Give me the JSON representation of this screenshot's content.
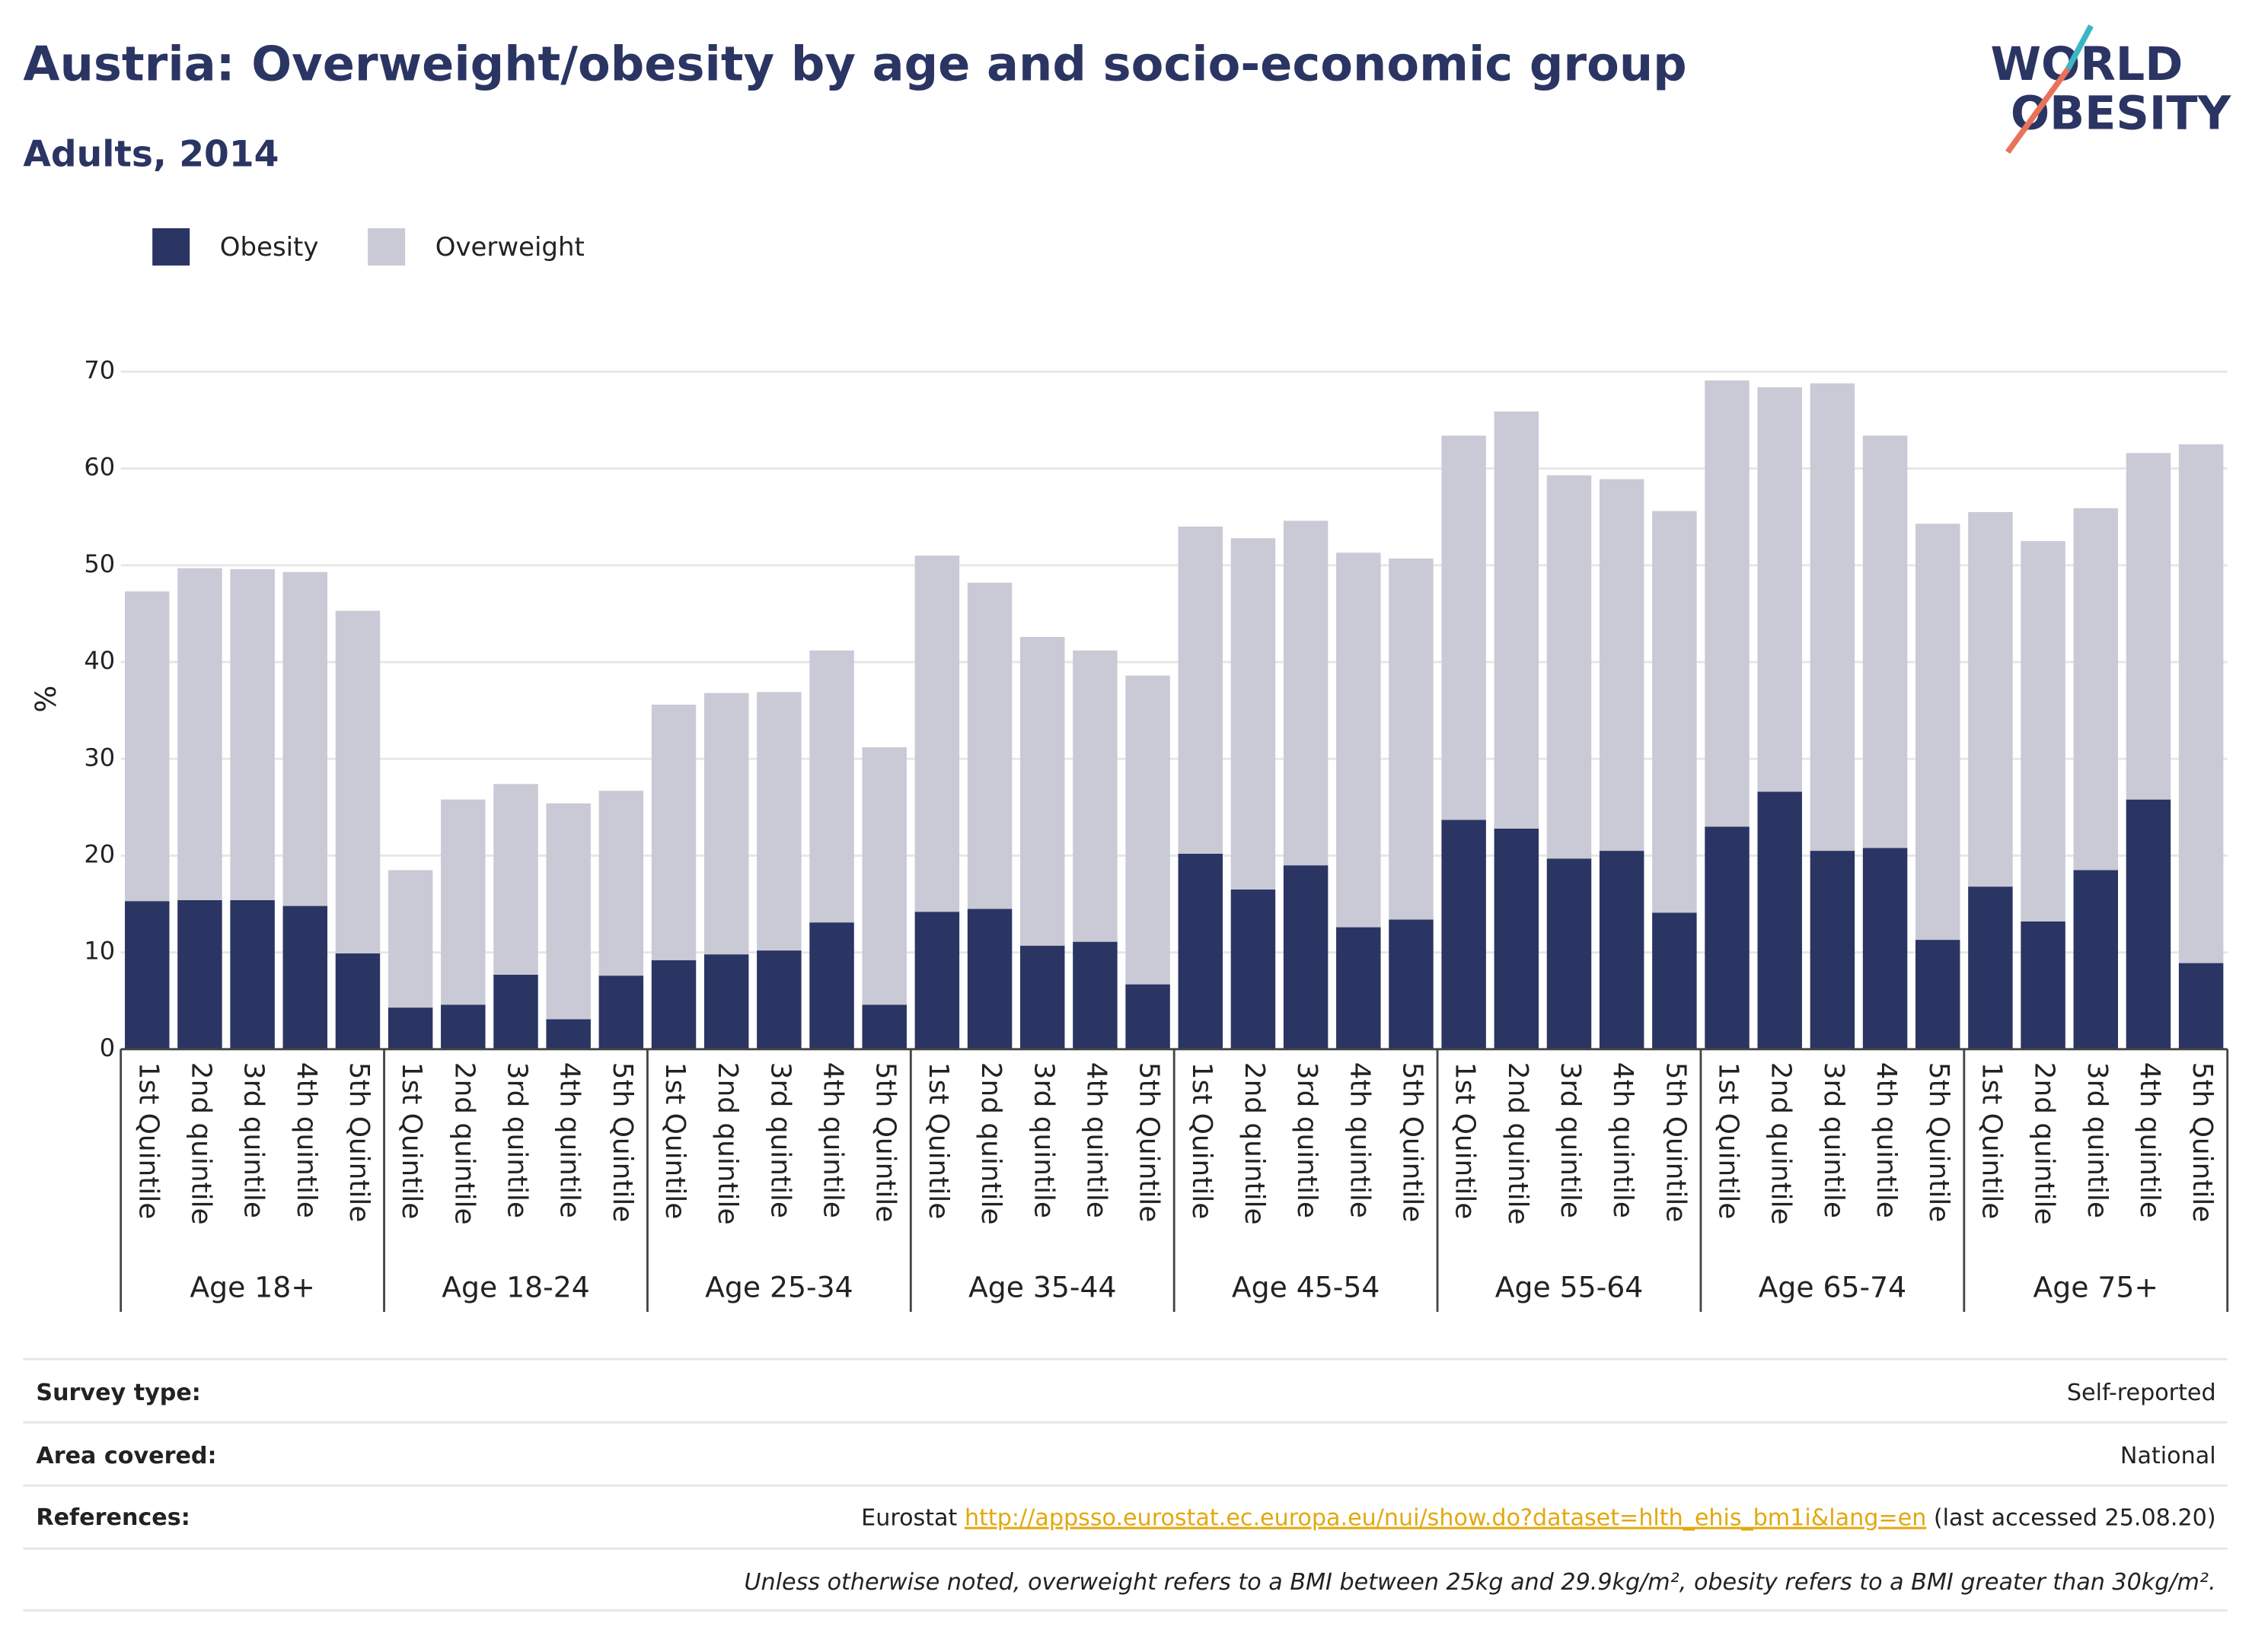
{
  "chart_data": {
    "type": "stacked_bar",
    "title": "Austria: Overweight/obesity by age and socio-economic group",
    "subtitle": "Adults, 2014",
    "y_label": "%",
    "categories": [
      "1st Quintile",
      "2nd quintile",
      "3rd quintile",
      "4th quintile",
      "5th Quintile",
      "1st Quintile",
      "2nd quintile",
      "3rd quintile",
      "4th quintile",
      "5th Quintile",
      "1st Quintile",
      "2nd quintile",
      "3rd quintile",
      "4th quintile",
      "5th Quintile",
      "1st Quintile",
      "2nd quintile",
      "3rd quintile",
      "4th quintile",
      "5th Quintile",
      "1st Quintile",
      "2nd quintile",
      "3rd quintile",
      "4th quintile",
      "5th Quintile",
      "1st Quintile",
      "2nd quintile",
      "3rd quintile",
      "4th quintile",
      "5th Quintile",
      "1st Quintile",
      "2nd quintile",
      "3rd quintile",
      "4th quintile",
      "5th Quintile",
      "1st Quintile",
      "2nd quintile",
      "3rd quintile",
      "4th quintile",
      "5th Quintile"
    ],
    "groups": [
      "Age 18+",
      "Age 18-24",
      "Age 25-34",
      "Age 35-44",
      "Age 45-54",
      "Age 55-64",
      "Age 65-74",
      "Age 75+"
    ],
    "series": [
      {
        "name": "Obesity",
        "color": "#2b3563",
        "values": [
          15.3,
          15.4,
          15.4,
          14.8,
          9.9,
          4.3,
          4.6,
          7.7,
          3.1,
          7.6,
          9.2,
          9.8,
          10.2,
          13.1,
          4.6,
          14.2,
          14.5,
          10.7,
          11.1,
          6.7,
          20.2,
          16.5,
          19.0,
          12.6,
          13.4,
          23.7,
          22.8,
          19.7,
          20.5,
          14.1,
          23.0,
          26.6,
          20.5,
          20.8,
          11.3,
          16.8,
          13.2,
          18.5,
          25.8,
          8.9
        ]
      },
      {
        "name": "Overweight",
        "color": "#c9cad6",
        "values": [
          32.0,
          34.3,
          34.2,
          34.5,
          35.4,
          14.2,
          21.2,
          19.7,
          22.3,
          19.1,
          26.4,
          27.0,
          26.7,
          28.1,
          26.6,
          36.8,
          33.7,
          31.9,
          30.1,
          31.9,
          33.8,
          36.3,
          35.6,
          38.7,
          37.3,
          39.7,
          43.1,
          39.6,
          38.4,
          41.5,
          46.1,
          41.8,
          48.3,
          42.6,
          43.0,
          38.7,
          39.3,
          37.4,
          35.8,
          53.6
        ]
      }
    ],
    "ylim": [
      0,
      70
    ],
    "yticks": [
      0,
      10,
      20,
      30,
      40,
      50,
      60,
      70
    ],
    "grid": true,
    "legend": "top-left"
  },
  "logo": [
    "WORLD",
    "OBESITY"
  ],
  "info": {
    "rows": [
      [
        "Survey type:",
        "Self-reported"
      ],
      [
        "Area covered:",
        "National"
      ]
    ],
    "references": {
      "label": "References:",
      "source": "Eurostat",
      "url": "http://appsso.eurostat.ec.europa.eu/nui/show.do?dataset=hlth_ehis_bm1i&lang=en",
      "note": "(last accessed 25.08.20)"
    },
    "footnote": "Unless otherwise noted, overweight refers to a BMI between 25kg and 29.9kg/m², obesity refers to a BMI greater than 30kg/m²."
  }
}
